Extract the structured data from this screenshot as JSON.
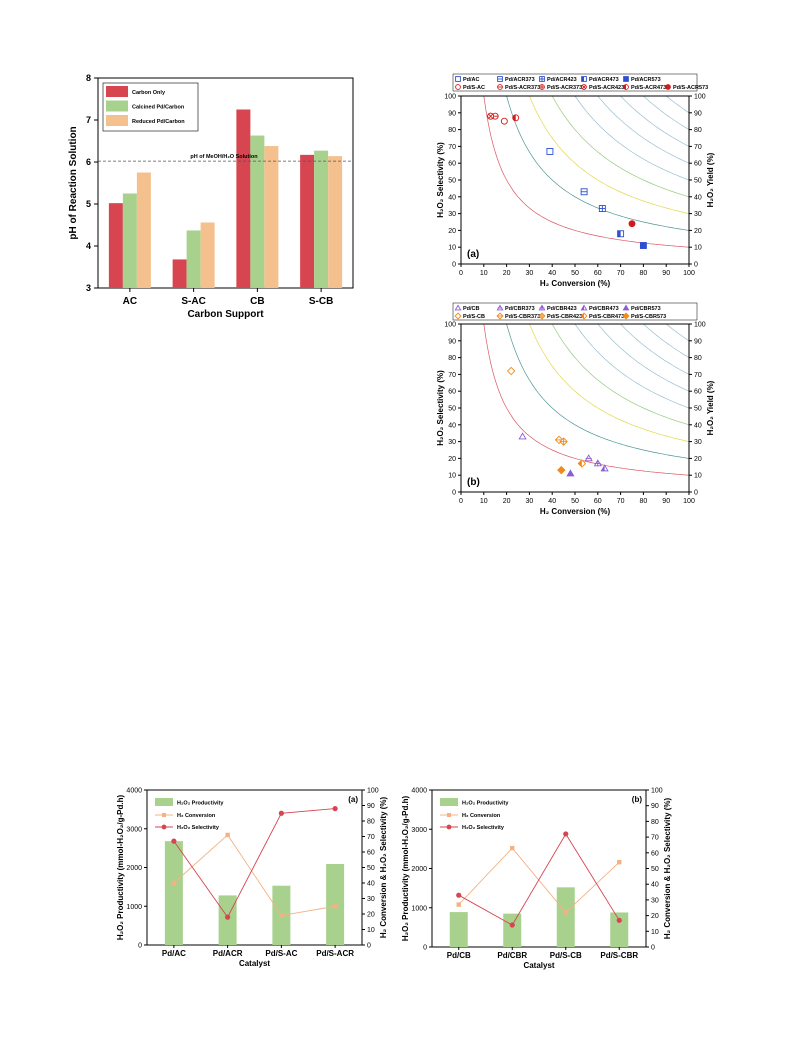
{
  "colors": {
    "carbon_only": "#d64550",
    "calcined": "#a9d18e",
    "reduced": "#f4c18e",
    "productivity": "#a9d18e",
    "conversion": "#f4b183",
    "selectivity": "#d64550",
    "ac_blue": "#2e4fd0",
    "ac_red": "#d11a1a",
    "cb_purple": "#8a5cd6",
    "cb_orange": "#f08a1c"
  },
  "chart_data": [
    {
      "id": "ph",
      "type": "bar",
      "title": "",
      "xlabel": "Carbon Support",
      "ylabel": "pH of Reaction Solution",
      "categories": [
        "AC",
        "S-AC",
        "CB",
        "S-CB"
      ],
      "ylim": [
        3,
        8
      ],
      "yticks": [
        "3",
        "4",
        "5",
        "6",
        "7",
        "8"
      ],
      "series": [
        {
          "name": "Carbon Only",
          "values": [
            5.02,
            3.68,
            7.25,
            6.17
          ]
        },
        {
          "name": "Calcined Pd/Carbon",
          "values": [
            5.25,
            4.37,
            6.63,
            6.27
          ]
        },
        {
          "name": "Reduced Pd/Carbon",
          "values": [
            5.75,
            4.56,
            6.38,
            6.14
          ]
        }
      ],
      "reference_line": {
        "value": 6.02,
        "label": "pH of MeOH/H₂O Solution"
      },
      "legend_position": "top-left"
    },
    {
      "id": "scatter_a",
      "type": "scatter",
      "panel_label": "(a)",
      "xlabel": "H₂ Conversion (%)",
      "ylabel": "H₂O₂ Selectivity (%)",
      "y2label": "H₂O₂ Yield (%)",
      "xlim": [
        0,
        100
      ],
      "ylim": [
        0,
        100
      ],
      "ticks": [
        "0",
        "10",
        "20",
        "30",
        "40",
        "50",
        "60",
        "70",
        "80",
        "90",
        "100"
      ],
      "iso_yield_lines": [
        10,
        20,
        30,
        40,
        50,
        60,
        70,
        80,
        90
      ],
      "series": [
        {
          "name": "Pd/AC",
          "marker": "sq-open",
          "color": "#2e4fd0",
          "points": [
            [
              39,
              67
            ]
          ]
        },
        {
          "name": "Pd/ACR373",
          "marker": "sq-h",
          "color": "#2e4fd0",
          "points": [
            [
              54,
              43
            ]
          ]
        },
        {
          "name": "Pd/ACR423",
          "marker": "sq-plus",
          "color": "#2e4fd0",
          "points": [
            [
              62,
              33
            ]
          ]
        },
        {
          "name": "Pd/ACR473",
          "marker": "sq-half",
          "color": "#2e4fd0",
          "points": [
            [
              70,
              18
            ]
          ]
        },
        {
          "name": "Pd/ACR573",
          "marker": "sq-fill",
          "color": "#2e4fd0",
          "points": [
            [
              80,
              11
            ]
          ]
        },
        {
          "name": "Pd/S-AC",
          "marker": "ci-open",
          "color": "#d11a1a",
          "points": [
            [
              19,
              85
            ]
          ]
        },
        {
          "name": "Pd/S-ACR373",
          "marker": "ci-h",
          "color": "#d11a1a",
          "points": [
            [
              15,
              88
            ]
          ]
        },
        {
          "name": "Pd/S-ACR373",
          "marker": "ci-plus",
          "color": "#d11a1a",
          "points": [
            [
              13,
              88
            ]
          ]
        },
        {
          "name": "Pd/S-ACR423",
          "marker": "ci-x",
          "color": "#d11a1a",
          "points": [
            [
              13,
              88
            ]
          ]
        },
        {
          "name": "Pd/S-ACR473",
          "marker": "ci-half",
          "color": "#d11a1a",
          "points": [
            [
              24,
              87
            ]
          ]
        },
        {
          "name": "Pd/S-ACR573",
          "marker": "ci-fill",
          "color": "#d11a1a",
          "points": [
            [
              75,
              24
            ]
          ]
        }
      ]
    },
    {
      "id": "scatter_b",
      "type": "scatter",
      "panel_label": "(b)",
      "xlabel": "H₂ Conversion (%)",
      "ylabel": "H₂O₂ Selectivity (%)",
      "y2label": "H₂O₂ Yield (%)",
      "xlim": [
        0,
        100
      ],
      "ylim": [
        0,
        100
      ],
      "ticks": [
        "0",
        "10",
        "20",
        "30",
        "40",
        "50",
        "60",
        "70",
        "80",
        "90",
        "100"
      ],
      "iso_yield_lines": [
        10,
        20,
        30,
        40,
        50,
        60,
        70,
        80,
        90
      ],
      "series": [
        {
          "name": "Pd/CB",
          "marker": "tr-open",
          "color": "#8a5cd6",
          "points": [
            [
              27,
              33
            ]
          ]
        },
        {
          "name": "Pd/CBR373",
          "marker": "tr-h",
          "color": "#8a5cd6",
          "points": [
            [
              56,
              20
            ]
          ]
        },
        {
          "name": "Pd/CBR423",
          "marker": "tr-plus",
          "color": "#8a5cd6",
          "points": [
            [
              60,
              17
            ]
          ]
        },
        {
          "name": "Pd/CBR473",
          "marker": "tr-half",
          "color": "#8a5cd6",
          "points": [
            [
              63,
              14
            ]
          ]
        },
        {
          "name": "Pd/CBR573",
          "marker": "tr-fill",
          "color": "#8a5cd6",
          "points": [
            [
              48,
              11
            ]
          ]
        },
        {
          "name": "Pd/S-CB",
          "marker": "di-open",
          "color": "#f08a1c",
          "points": [
            [
              22,
              72
            ]
          ]
        },
        {
          "name": "Pd/S-CBR373",
          "marker": "di-h",
          "color": "#f08a1c",
          "points": [
            [
              43,
              31
            ]
          ]
        },
        {
          "name": "Pd/S-CBR423",
          "marker": "di-plus",
          "color": "#f08a1c",
          "points": [
            [
              45,
              30
            ]
          ]
        },
        {
          "name": "Pd/S-CBR473",
          "marker": "di-half",
          "color": "#f08a1c",
          "points": [
            [
              53,
              17
            ]
          ]
        },
        {
          "name": "Pd/S-CBR573",
          "marker": "di-fill",
          "color": "#f08a1c",
          "points": [
            [
              44,
              13
            ]
          ]
        }
      ]
    },
    {
      "id": "combo_a",
      "type": "bar",
      "panel_label": "(a)",
      "xlabel": "Catalyst",
      "ylabel": "H₂O₂ Productivity (mmol-H₂O₂/g-Pd.h)",
      "y2label": "H₂ Conversion & H₂O₂ Selectivity (%)",
      "categories": [
        "Pd/AC",
        "Pd/ACR",
        "Pd/S-AC",
        "Pd/S-ACR"
      ],
      "ylim": [
        0,
        4000
      ],
      "y2lim": [
        0,
        100
      ],
      "yticks": [
        "0",
        "1000",
        "2000",
        "3000",
        "4000"
      ],
      "y2ticks": [
        "0",
        "10",
        "20",
        "30",
        "40",
        "50",
        "60",
        "70",
        "80",
        "90",
        "100"
      ],
      "series": [
        {
          "name": "H₂O₂ Productivity",
          "kind": "bar",
          "values": [
            2680,
            1280,
            1530,
            2090
          ]
        },
        {
          "name": "H₂ Conversion",
          "kind": "line",
          "axis": "right",
          "values": [
            40,
            71,
            19,
            25
          ]
        },
        {
          "name": "H₂O₂ Selectivity",
          "kind": "line",
          "axis": "right",
          "values": [
            67,
            18,
            85,
            88
          ]
        }
      ]
    },
    {
      "id": "combo_b",
      "type": "bar",
      "panel_label": "(b)",
      "xlabel": "Catalyst",
      "ylabel": "H₂O₂ Productivity (mmol-H₂O₂/g-Pd.h)",
      "y2label": "H₂ Conversion & H₂O₂ Selectivity (%)",
      "categories": [
        "Pd/CB",
        "Pd/CBR",
        "Pd/S-CB",
        "Pd/S-CBR"
      ],
      "ylim": [
        0,
        4000
      ],
      "y2lim": [
        0,
        100
      ],
      "yticks": [
        "0",
        "1000",
        "2000",
        "3000",
        "4000"
      ],
      "y2ticks": [
        "0",
        "10",
        "20",
        "30",
        "40",
        "50",
        "60",
        "70",
        "80",
        "90",
        "100"
      ],
      "series": [
        {
          "name": "H₂O₂ Productivity",
          "kind": "bar",
          "values": [
            890,
            850,
            1520,
            880
          ]
        },
        {
          "name": "H₂ Conversion",
          "kind": "line",
          "axis": "right",
          "values": [
            27,
            63,
            22,
            54
          ]
        },
        {
          "name": "H₂O₂ Selectivity",
          "kind": "line",
          "axis": "right",
          "values": [
            33,
            14,
            72,
            17
          ]
        }
      ]
    }
  ]
}
